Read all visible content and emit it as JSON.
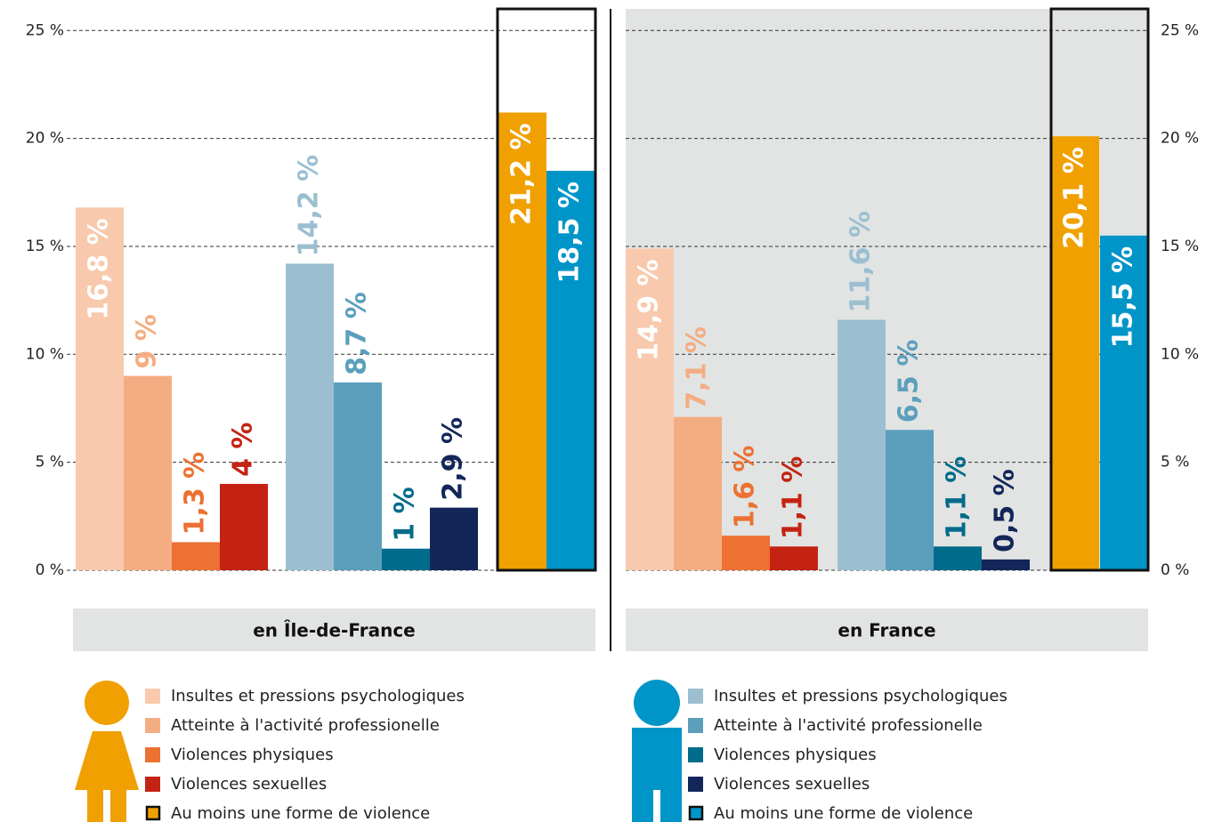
{
  "chart_data": {
    "type": "bar",
    "categories": [
      "en Île-de-France",
      "en France"
    ],
    "ylim": [
      0,
      26
    ],
    "yticks": [
      {
        "value": 0,
        "label": "0 %"
      },
      {
        "value": 5,
        "label": "5 %"
      },
      {
        "value": 10,
        "label": "10 %"
      },
      {
        "value": 15,
        "label": "15 %"
      },
      {
        "value": 20,
        "label": "20 %"
      },
      {
        "value": 25,
        "label": "25 %"
      }
    ],
    "grid": true,
    "series": [
      {
        "name": "Insultes et pressions psychologiques",
        "color": "#f8c9ad",
        "values": [
          16.8,
          14.9
        ],
        "value_labels": [
          "16,8 %",
          "14,9 %"
        ]
      },
      {
        "name": "Atteinte à l'activité professionelle",
        "color": "#f4ad82",
        "values": [
          9,
          7.1
        ],
        "value_labels": [
          "9 %",
          "7,1 %"
        ]
      },
      {
        "name": "Violences physiques",
        "color": "#ec7132",
        "values": [
          1.3,
          1.6
        ],
        "value_labels": [
          "1,3 %",
          "1,6 %"
        ]
      },
      {
        "name": "Violences sexuelles",
        "color": "#c42313",
        "values": [
          4,
          1.1
        ],
        "value_labels": [
          "4 %",
          "1,1 %"
        ]
      },
      {
        "name": "Au moins une forme de violence",
        "color": "#f0a000",
        "values": [
          21.2,
          20.1
        ],
        "value_labels": [
          "21,2 %",
          "20,1 %"
        ]
      },
      {
        "name": "Insultes et pressions psychologiques",
        "color": "#9bbfd1",
        "values": [
          14.2,
          11.6
        ],
        "value_labels": [
          "14,2 %",
          "11,6 %"
        ]
      },
      {
        "name": "Atteinte à l'activité professionelle",
        "color": "#5b9fbd",
        "values": [
          8.7,
          6.5
        ],
        "value_labels": [
          "8,7 %",
          "6,5 %"
        ]
      },
      {
        "name": "Violences physiques",
        "color": "#006b8a",
        "values": [
          1,
          1.1
        ],
        "value_labels": [
          "1 %",
          "1,1 %"
        ]
      },
      {
        "name": "Violences sexuelles",
        "color": "#13265a",
        "values": [
          2.9,
          0.5
        ],
        "value_labels": [
          "2,9 %",
          "0,5 %"
        ]
      },
      {
        "name": "Au moins une forme de violence",
        "color": "#0095c8",
        "values": [
          18.5,
          15.5
        ],
        "value_labels": [
          "18,5 %",
          "15,5 %"
        ]
      }
    ]
  }
}
